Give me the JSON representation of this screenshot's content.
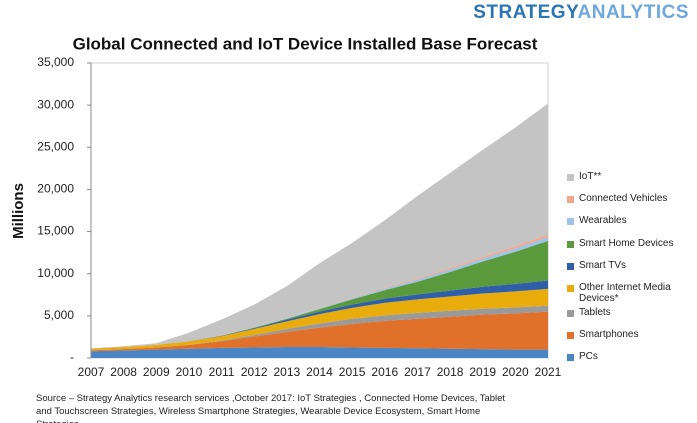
{
  "brand": {
    "first": "STRATEGY",
    "second": "ANALYTICS"
  },
  "chart_data": {
    "type": "stacked-area",
    "title": "Global Connected and IoT Device Installed Base Forecast",
    "y_label": "Millions",
    "categories": [
      "2007",
      "2008",
      "2009",
      "2010",
      "2011",
      "2012",
      "2013",
      "2014",
      "2015",
      "2016",
      "2017",
      "2018",
      "2019",
      "2020",
      "2021"
    ],
    "ylim": [
      0,
      35000
    ],
    "yticks": [
      {
        "value": 0,
        "label": "-"
      },
      {
        "value": 5000,
        "label": "5,000"
      },
      {
        "value": 10000,
        "label": "10,000"
      },
      {
        "value": 15000,
        "label": "15,000"
      },
      {
        "value": 20000,
        "label": "20,000"
      },
      {
        "value": 25000,
        "label": "25,000"
      },
      {
        "value": 30000,
        "label": "30,000"
      },
      {
        "value": 35000,
        "label": "35,000"
      }
    ],
    "series": [
      {
        "name": "PCs",
        "color": "#4a86c5",
        "values": [
          800,
          900,
          1000,
          1100,
          1200,
          1250,
          1300,
          1300,
          1250,
          1200,
          1150,
          1100,
          1050,
          1000,
          1000
        ]
      },
      {
        "name": "Smartphones",
        "color": "#e0702a",
        "values": [
          100,
          150,
          250,
          450,
          800,
          1300,
          1800,
          2300,
          2800,
          3200,
          3500,
          3800,
          4100,
          4300,
          4500
        ]
      },
      {
        "name": "Tablets",
        "color": "#9a9a9a",
        "values": [
          0,
          0,
          0,
          20,
          80,
          200,
          350,
          500,
          600,
          650,
          700,
          700,
          700,
          700,
          700
        ]
      },
      {
        "name": "Other Internet Media Devices*",
        "color": "#e8ad0d",
        "values": [
          200,
          250,
          300,
          400,
          500,
          700,
          900,
          1100,
          1300,
          1500,
          1600,
          1700,
          1800,
          1900,
          2000
        ]
      },
      {
        "name": "Smart TVs",
        "color": "#2f5fa8",
        "values": [
          0,
          0,
          0,
          20,
          50,
          100,
          200,
          300,
          400,
          500,
          600,
          700,
          800,
          900,
          1000
        ]
      },
      {
        "name": "Smart Home Devices",
        "color": "#5b9a3c",
        "values": [
          0,
          0,
          0,
          0,
          20,
          50,
          100,
          300,
          600,
          1000,
          1500,
          2200,
          3000,
          3800,
          4700
        ]
      },
      {
        "name": "Wearables",
        "color": "#9dc3e6",
        "values": [
          0,
          0,
          0,
          0,
          10,
          30,
          60,
          100,
          150,
          200,
          250,
          300,
          350,
          400,
          450
        ]
      },
      {
        "name": "Connected Vehicles",
        "color": "#f4a58a",
        "values": [
          0,
          0,
          0,
          0,
          5,
          10,
          20,
          40,
          60,
          90,
          120,
          160,
          200,
          250,
          300
        ]
      },
      {
        "name": "IoT**",
        "color": "#c4c4c4",
        "values": [
          50,
          100,
          200,
          1000,
          1900,
          2700,
          3800,
          5300,
          6500,
          8000,
          9800,
          11300,
          12700,
          14100,
          15550
        ]
      }
    ],
    "source": "Source – Strategy Analytics research services ,October 2017: IoT Strategies , Connected Home Devices, Tablet and Touchscreen Strategies, Wireless Smartphone Strategies, Wearable Device Ecosystem,  Smart Home Strategies"
  }
}
